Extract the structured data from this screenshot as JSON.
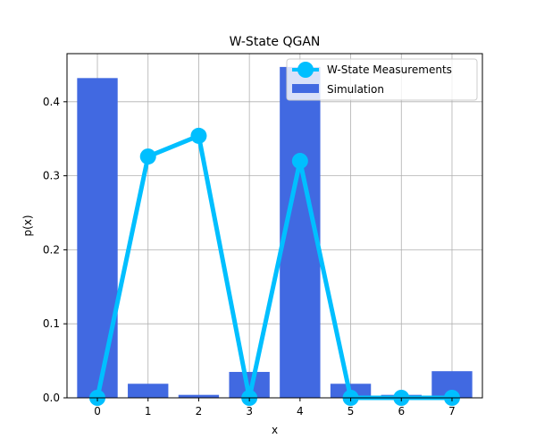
{
  "chart_data": {
    "type": "bar+line",
    "title": "W-State QGAN",
    "xlabel": "x",
    "ylabel": "p(x)",
    "x": [
      0,
      1,
      2,
      3,
      4,
      5,
      6,
      7
    ],
    "x_tick_labels": [
      "0",
      "1",
      "2",
      "3",
      "4",
      "5",
      "6",
      "7"
    ],
    "ylim": [
      0,
      0.465
    ],
    "y_ticks": [
      0.0,
      0.1,
      0.2,
      0.3,
      0.4
    ],
    "y_tick_labels": [
      "0.0",
      "0.1",
      "0.2",
      "0.3",
      "0.4"
    ],
    "grid": true,
    "legend_position": "top-right",
    "series": [
      {
        "name": "W-State Measurements",
        "kind": "line",
        "color": "#00bfff",
        "values": [
          0.0,
          0.326,
          0.354,
          0.0,
          0.32,
          0.0,
          0.0,
          0.0
        ]
      },
      {
        "name": "Simulation",
        "kind": "bar",
        "color": "#4169e1",
        "values": [
          0.432,
          0.019,
          0.004,
          0.035,
          0.447,
          0.019,
          0.004,
          0.036
        ]
      }
    ]
  }
}
